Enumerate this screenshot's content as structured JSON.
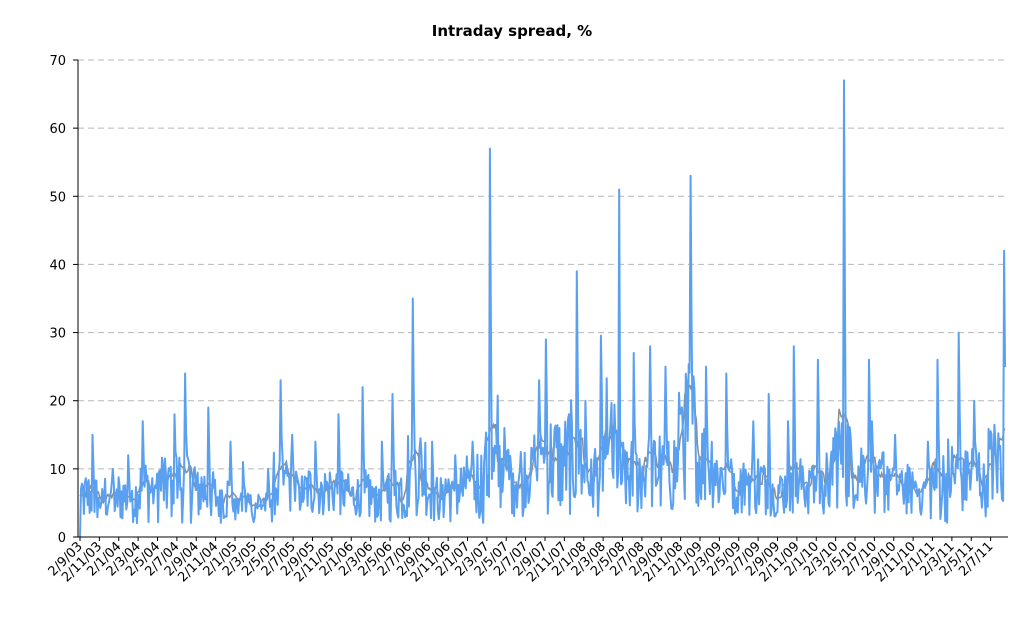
{
  "chart_data": {
    "type": "line",
    "title": "Intraday spread, %",
    "xlabel": "",
    "ylabel": "",
    "ylim": [
      0,
      70
    ],
    "y_ticks": [
      0,
      10,
      20,
      30,
      40,
      50,
      60,
      70
    ],
    "grid": "horizontal dashed",
    "legend": "none",
    "x_tick_labels": [
      "2/9/03",
      "2/11/03",
      "2/1/04",
      "2/3/04",
      "2/5/04",
      "2/7/04",
      "2/9/04",
      "2/11/04",
      "2/1/05",
      "2/3/05",
      "2/5/05",
      "2/7/05",
      "2/9/05",
      "2/11/05",
      "2/1/06",
      "2/3/06",
      "2/5/06",
      "2/7/06",
      "2/9/06",
      "2/11/06",
      "2/1/07",
      "2/3/07",
      "2/5/07",
      "2/7/07",
      "2/9/07",
      "2/11/07",
      "2/1/08",
      "2/3/08",
      "2/5/08",
      "2/7/08",
      "2/9/08",
      "2/11/08",
      "2/1/09",
      "2/3/09",
      "2/5/09",
      "2/7/09",
      "2/9/09",
      "2/11/09",
      "2/1/10",
      "2/3/10",
      "2/5/10",
      "2/7/10",
      "2/9/10",
      "2/11/10",
      "2/1/11",
      "2/3/11",
      "2/5/11",
      "2/7/11"
    ],
    "series": [
      {
        "color": "#5aa0f0",
        "x": [
          "2/9/03",
          "2/11/03",
          "2/1/04",
          "2/3/04",
          "2/5/04",
          "2/7/04",
          "2/9/04",
          "2/11/04",
          "2/1/05",
          "2/3/05",
          "2/5/05",
          "2/7/05",
          "2/9/05",
          "2/11/05",
          "2/1/06",
          "2/3/06",
          "2/5/06",
          "2/7/06",
          "2/9/06",
          "2/11/06",
          "2/1/07",
          "2/3/07",
          "2/5/07",
          "2/7/07",
          "2/9/07",
          "2/11/07",
          "2/1/08",
          "2/3/08",
          "2/5/08",
          "2/7/08",
          "2/9/08",
          "2/11/08",
          "2/1/09",
          "2/3/09",
          "2/5/09",
          "2/7/09",
          "2/9/09",
          "2/11/09",
          "2/1/10",
          "2/3/10",
          "2/5/10",
          "2/7/10",
          "2/9/10",
          "2/11/10",
          "2/1/11",
          "2/3/11",
          "2/5/11",
          "2/7/11"
        ],
        "peak": [
          15,
          10,
          12,
          17,
          18,
          24,
          19,
          14,
          11,
          10,
          23,
          15,
          14,
          18,
          22,
          14,
          21,
          35,
          14,
          12,
          14,
          57,
          16,
          23,
          29,
          39,
          20,
          51,
          27,
          28,
          25,
          53,
          25,
          24,
          17,
          21,
          17,
          28,
          26,
          67,
          26,
          17,
          15,
          14,
          26,
          30,
          20,
          42
        ],
        "trough": [
          2,
          2,
          2,
          2,
          2,
          2,
          2,
          2,
          2,
          2,
          3,
          3,
          3,
          3,
          3,
          2,
          2,
          3,
          2,
          2,
          2,
          3,
          3,
          4,
          3,
          3,
          3,
          4,
          3,
          3,
          3,
          5,
          4,
          3,
          3,
          3,
          3,
          3,
          3,
          4,
          4,
          3,
          3,
          3,
          2,
          3,
          3,
          4
        ],
        "level": [
          6,
          6,
          6,
          7,
          8,
          8,
          7,
          6,
          5,
          5,
          8,
          7,
          7,
          7,
          6,
          6,
          7,
          10,
          7,
          7,
          8,
          10,
          9,
          11,
          11,
          12,
          9,
          12,
          9,
          10,
          10,
          16,
          11,
          9,
          8,
          8,
          7,
          8,
          8,
          12,
          10,
          9,
          8,
          7,
          8,
          9,
          9,
          11
        ]
      }
    ]
  }
}
